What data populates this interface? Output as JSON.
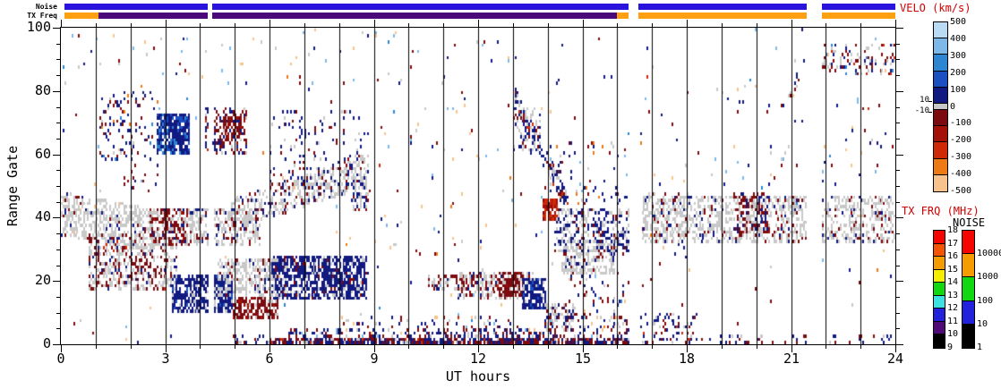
{
  "chart_data": {
    "type": "heatmap",
    "title": "",
    "xlabel": "UT hours",
    "ylabel": "Range Gate",
    "xlim": [
      0,
      24
    ],
    "ylim": [
      0,
      100
    ],
    "x_major_ticks": [
      0,
      3,
      6,
      9,
      12,
      15,
      18,
      21,
      24
    ],
    "x_minor_step_hours": 1,
    "y_major_ticks": [
      0,
      20,
      40,
      60,
      80,
      100
    ],
    "y_minor_step_gates": 5,
    "hour_gridlines": true,
    "seed": 1337,
    "time_step_hours": 0.05,
    "off_intervals": [
      [
        4.22,
        4.35
      ],
      [
        16.33,
        16.62
      ],
      [
        21.45,
        21.87
      ]
    ],
    "palette": {
      "navy": "#111a80",
      "blue": "#1b50c2",
      "mblue": "#2e85d2",
      "lblue": "#7db8e8",
      "vlblue": "#b9dcf4",
      "gray": "#c8c8c8",
      "dred": "#7c0b10",
      "red": "#a31108",
      "bred": "#cf2a08",
      "orange": "#ee7a16",
      "peach": "#f8c28c"
    },
    "background_speckle": {
      "density": 0.006,
      "weights": {
        "navy": 0.22,
        "dred": 0.22,
        "lblue": 0.16,
        "peach": 0.14,
        "gray": 0.12,
        "bred": 0.05,
        "orange": 0.04,
        "mblue": 0.05
      }
    },
    "clusters": [
      {
        "name": "gs-band-early",
        "t0": 0.0,
        "t1": 2.6,
        "g0": 34,
        "g1": 48,
        "d": 0.5,
        "s": -2,
        "w": {
          "gray": 0.85,
          "dred": 0.08,
          "navy": 0.05,
          "peach": 0.02
        }
      },
      {
        "name": "red-gray-low-left",
        "t0": 0.8,
        "t1": 3.3,
        "g0": 17,
        "g1": 35,
        "d": 0.42,
        "w": {
          "gray": 0.55,
          "dred": 0.35,
          "navy": 0.08,
          "bred": 0.02
        }
      },
      {
        "name": "gs-band-mid-morning",
        "t0": 2.5,
        "t1": 5.7,
        "g0": 31,
        "g1": 43,
        "d": 0.45,
        "w": {
          "gray": 0.78,
          "dred": 0.15,
          "navy": 0.07
        }
      },
      {
        "name": "red-streak",
        "t0": 2.55,
        "t1": 3.6,
        "g0": 31,
        "g1": 43,
        "d": 0.28,
        "w": {
          "dred": 0.78,
          "red": 0.1,
          "navy": 0.12
        }
      },
      {
        "name": "high-scatter-early",
        "t0": 1.1,
        "t1": 2.8,
        "g0": 58,
        "g1": 80,
        "d": 0.13,
        "w": {
          "navy": 0.42,
          "dred": 0.3,
          "mblue": 0.1,
          "orange": 0.08,
          "gray": 0.1
        }
      },
      {
        "name": "navy-blob-h3",
        "t0": 2.75,
        "t1": 3.65,
        "g0": 60,
        "g1": 73,
        "d": 0.8,
        "w": {
          "navy": 0.68,
          "blue": 0.2,
          "mblue": 0.12
        }
      },
      {
        "name": "mixed-h4-5-high",
        "t0": 4.15,
        "t1": 5.3,
        "g0": 60,
        "g1": 75,
        "d": 0.33,
        "w": {
          "navy": 0.45,
          "dred": 0.4,
          "bred": 0.05,
          "gray": 0.1
        }
      },
      {
        "name": "red-clump-h5-high",
        "t0": 4.55,
        "t1": 5.25,
        "g0": 64,
        "g1": 72,
        "d": 0.5,
        "w": {
          "dred": 0.8,
          "red": 0.2
        }
      },
      {
        "name": "navy-blob-h4-low",
        "t0": 3.2,
        "t1": 4.9,
        "g0": 10,
        "g1": 22,
        "d": 0.72,
        "w": {
          "navy": 0.8,
          "blue": 0.06,
          "gray": 0.14
        }
      },
      {
        "name": "gray-band-h5-low",
        "t0": 4.5,
        "t1": 6.5,
        "g0": 15,
        "g1": 27,
        "d": 0.5,
        "w": {
          "gray": 0.8,
          "dred": 0.1,
          "navy": 0.1
        }
      },
      {
        "name": "dred-blob-h5.5",
        "t0": 4.95,
        "t1": 6.2,
        "g0": 8,
        "g1": 15,
        "d": 0.6,
        "w": {
          "dred": 0.72,
          "gray": 0.16,
          "red": 0.12
        }
      },
      {
        "name": "navy-region-h7-8.5",
        "t0": 6.05,
        "t1": 8.8,
        "g0": 14,
        "g1": 28,
        "d": 0.68,
        "w": {
          "navy": 0.82,
          "gray": 0.12,
          "dred": 0.06
        }
      },
      {
        "name": "gs-band-rising",
        "t0": 4.9,
        "t1": 8.8,
        "g0": 36,
        "g1": 46,
        "d": 0.45,
        "s": 3.5,
        "w": {
          "gray": 0.68,
          "navy": 0.2,
          "dred": 0.12
        }
      },
      {
        "name": "speckle-above-band",
        "t0": 6.0,
        "t1": 8.75,
        "g0": 50,
        "g1": 74,
        "d": 0.09,
        "w": {
          "navy": 0.55,
          "dred": 0.25,
          "gray": 0.2
        }
      },
      {
        "name": "band-end-chunk",
        "t0": 8.3,
        "t1": 8.85,
        "g0": 42,
        "g1": 60,
        "d": 0.35,
        "w": {
          "gray": 0.55,
          "navy": 0.35,
          "dred": 0.1
        }
      },
      {
        "name": "bottom-start",
        "t0": 4.8,
        "t1": 6.0,
        "g0": 0,
        "g1": 3,
        "d": 0.25,
        "w": {
          "navy": 0.5,
          "dred": 0.35,
          "gray": 0.15
        }
      },
      {
        "name": "bottom-band-dense",
        "t0": 6.0,
        "t1": 16.33,
        "g0": 0,
        "g1": 2,
        "d": 0.8,
        "w": {
          "navy": 0.45,
          "dred": 0.4,
          "gray": 0.1,
          "bred": 0.05
        }
      },
      {
        "name": "bottom-band-mid",
        "t0": 6.5,
        "t1": 16.33,
        "g0": 2,
        "g1": 5,
        "d": 0.33,
        "w": {
          "navy": 0.5,
          "dred": 0.3,
          "gray": 0.12,
          "lblue": 0.04,
          "peach": 0.04
        }
      },
      {
        "name": "bottom-band-upper",
        "t0": 8.0,
        "t1": 16.3,
        "g0": 5,
        "g1": 9,
        "d": 0.11,
        "w": {
          "navy": 0.45,
          "dred": 0.3,
          "gray": 0.15,
          "lblue": 0.05,
          "peach": 0.05
        }
      },
      {
        "name": "red-band-midday",
        "t0": 10.55,
        "t1": 12.6,
        "g0": 17,
        "g1": 22,
        "d": 0.4,
        "w": {
          "dred": 0.52,
          "gray": 0.33,
          "navy": 0.1,
          "bred": 0.05
        }
      },
      {
        "name": "gray-band-midday",
        "t0": 11.3,
        "t1": 13.6,
        "g0": 14,
        "g1": 23,
        "d": 0.4,
        "w": {
          "gray": 0.62,
          "dred": 0.26,
          "navy": 0.12
        }
      },
      {
        "name": "dred-blob-h13",
        "t0": 12.6,
        "t1": 13.3,
        "g0": 15,
        "g1": 23,
        "d": 0.72,
        "w": {
          "dred": 0.85,
          "red": 0.1,
          "gray": 0.05
        }
      },
      {
        "name": "navy-blob-h13.5",
        "t0": 13.25,
        "t1": 13.95,
        "g0": 11,
        "g1": 21,
        "d": 0.78,
        "w": {
          "navy": 0.85,
          "blue": 0.05,
          "gray": 0.1
        }
      },
      {
        "name": "gray-tail-h14",
        "t0": 13.9,
        "t1": 14.8,
        "g0": 4,
        "g1": 13,
        "d": 0.4,
        "w": {
          "gray": 0.55,
          "dred": 0.3,
          "navy": 0.15
        }
      },
      {
        "name": "descending-band",
        "t0": 13.05,
        "t1": 14.7,
        "g0": 74,
        "g1": 81,
        "d": 0.5,
        "s": -22,
        "w": {
          "navy": 0.58,
          "gray": 0.28,
          "dred": 0.1,
          "bred": 0.04
        }
      },
      {
        "name": "clump-top-descent",
        "t0": 13.0,
        "t1": 13.8,
        "g0": 60,
        "g1": 75,
        "d": 0.25,
        "w": {
          "gray": 0.55,
          "navy": 0.3,
          "dred": 0.15
        }
      },
      {
        "name": "bright-red-blob",
        "t0": 13.85,
        "t1": 14.3,
        "g0": 39,
        "g1": 46,
        "d": 0.8,
        "w": {
          "bred": 0.72,
          "red": 0.2,
          "dred": 0.08
        }
      },
      {
        "name": "navy-gray-wedge",
        "t0": 14.2,
        "t1": 16.45,
        "g0": 29,
        "g1": 43,
        "d": 0.4,
        "w": {
          "navy": 0.5,
          "gray": 0.38,
          "dred": 0.12
        }
      },
      {
        "name": "gray-blob-h15",
        "t0": 14.4,
        "t1": 15.95,
        "g0": 22,
        "g1": 33,
        "d": 0.5,
        "w": {
          "gray": 0.75,
          "navy": 0.15,
          "dred": 0.1
        }
      },
      {
        "name": "sparse-low-h15",
        "t0": 14.6,
        "t1": 16.33,
        "g0": 4,
        "g1": 22,
        "d": 0.1,
        "w": {
          "navy": 0.4,
          "dred": 0.3,
          "gray": 0.2,
          "peach": 0.05,
          "lblue": 0.05
        }
      },
      {
        "name": "speckle-right-of-descent",
        "t0": 13.8,
        "t1": 16.3,
        "g0": 44,
        "g1": 64,
        "d": 0.07,
        "w": {
          "navy": 0.5,
          "dred": 0.22,
          "gray": 0.14,
          "orange": 0.07,
          "lblue": 0.07
        }
      },
      {
        "name": "gs-band-evening",
        "t0": 16.7,
        "t1": 24,
        "g0": 32,
        "g1": 47,
        "d": 0.42,
        "w": {
          "gray": 0.78,
          "dred": 0.12,
          "navy": 0.1
        }
      },
      {
        "name": "evening-band-clump",
        "t0": 16.75,
        "t1": 18.05,
        "g0": 35,
        "g1": 48,
        "d": 0.22,
        "w": {
          "gray": 0.7,
          "navy": 0.15,
          "dred": 0.15
        }
      },
      {
        "name": "red-clump-h20",
        "t0": 19.4,
        "t1": 20.4,
        "g0": 35,
        "g1": 48,
        "d": 0.28,
        "w": {
          "dred": 0.68,
          "red": 0.14,
          "navy": 0.18
        }
      },
      {
        "name": "high-clumps-h22",
        "t0": 21.6,
        "t1": 24,
        "g0": 85,
        "g1": 95,
        "d": 0.22,
        "w": {
          "gray": 0.35,
          "dred": 0.3,
          "navy": 0.2,
          "mblue": 0.07,
          "bred": 0.08
        }
      },
      {
        "name": "high-clump-h21",
        "t0": 20.9,
        "t1": 21.25,
        "g0": 78,
        "g1": 86,
        "d": 0.15,
        "w": {
          "dred": 0.4,
          "navy": 0.35,
          "gray": 0.25
        }
      },
      {
        "name": "bottom-evening",
        "t0": 16.6,
        "t1": 18.3,
        "g0": 0,
        "g1": 10,
        "d": 0.2,
        "w": {
          "navy": 0.5,
          "dred": 0.3,
          "gray": 0.1,
          "bred": 0.1
        }
      },
      {
        "name": "bottom-late",
        "t0": 18.3,
        "t1": 24,
        "g0": 0,
        "g1": 3,
        "d": 0.12,
        "w": {
          "navy": 0.5,
          "dred": 0.4,
          "gray": 0.1
        }
      },
      {
        "name": "sparse-h2-mid",
        "t0": 1.8,
        "t1": 2.8,
        "g0": 48,
        "g1": 57,
        "d": 0.08,
        "w": {
          "dred": 0.5,
          "navy": 0.5
        }
      },
      {
        "name": "sparse-midday-high",
        "t0": 9.0,
        "t1": 13.0,
        "g0": 30,
        "g1": 98,
        "d": 0.012,
        "w": {
          "lblue": 0.28,
          "peach": 0.22,
          "navy": 0.2,
          "dred": 0.18,
          "gray": 0.12
        }
      },
      {
        "name": "sparse-evening-mid",
        "t0": 16.65,
        "t1": 24,
        "g0": 50,
        "g1": 82,
        "d": 0.013,
        "w": {
          "lblue": 0.24,
          "peach": 0.18,
          "navy": 0.26,
          "dred": 0.22,
          "gray": 0.1
        }
      },
      {
        "name": "sparse-early-high",
        "t0": 0.0,
        "t1": 8.7,
        "g0": 82,
        "g1": 99,
        "d": 0.012,
        "w": {
          "lblue": 0.3,
          "navy": 0.25,
          "dred": 0.2,
          "peach": 0.15,
          "gray": 0.1
        }
      }
    ],
    "status_bars": {
      "noise": {
        "label": "Noise",
        "color": "#2a14dd",
        "segments": [
          [
            0.1,
            4.22
          ],
          [
            4.35,
            16.33
          ],
          [
            16.62,
            21.45
          ],
          [
            21.9,
            24
          ]
        ]
      },
      "tx_freq": {
        "label": "TX Freq",
        "segments": [
          [
            0.1,
            1.08,
            "#ffa013"
          ],
          [
            1.08,
            4.22,
            "#4a0a7a"
          ],
          [
            4.35,
            16.0,
            "#4a0a7a"
          ],
          [
            16.0,
            16.33,
            "#ffa013"
          ],
          [
            16.62,
            21.45,
            "#ffa013"
          ],
          [
            21.9,
            24,
            "#ffa013"
          ]
        ]
      }
    },
    "colorbars": {
      "velocity": {
        "title": "VELO (km/s)",
        "title_color": "#d00000",
        "labels": [
          "500",
          "400",
          "300",
          "200",
          "100",
          "0",
          "-100",
          "-200",
          "-300",
          "-400",
          "-500"
        ],
        "upper_colors": [
          "#b9dcf4",
          "#7db8e8",
          "#2e85d2",
          "#1b50c2",
          "#111a80"
        ],
        "zero_color": "#c8c8c8",
        "lower_colors": [
          "#7c0b10",
          "#a31108",
          "#cf2a08",
          "#ee7a16",
          "#f8c28c"
        ],
        "zero_labels": [
          "10",
          "-10"
        ]
      },
      "tx_freq": {
        "title": "TX FRQ (MHz)",
        "title_color": "#d00000",
        "labels": [
          "18",
          "17",
          "16",
          "15",
          "14",
          "13",
          "12",
          "11",
          "10",
          "9"
        ],
        "colors": [
          "#f50400",
          "#f55400",
          "#f59c00",
          "#f5ee00",
          "#12d812",
          "#3ce2e2",
          "#2222dd",
          "#4f0a78",
          "#000000"
        ]
      },
      "noise": {
        "title": "NOISE",
        "title_color": "#000000",
        "labels": [
          "10000",
          "1000",
          "100",
          "10",
          "1"
        ],
        "colors": [
          "#f50400",
          "#f59c00",
          "#12d812",
          "#2222dd",
          "#000000"
        ]
      }
    }
  }
}
